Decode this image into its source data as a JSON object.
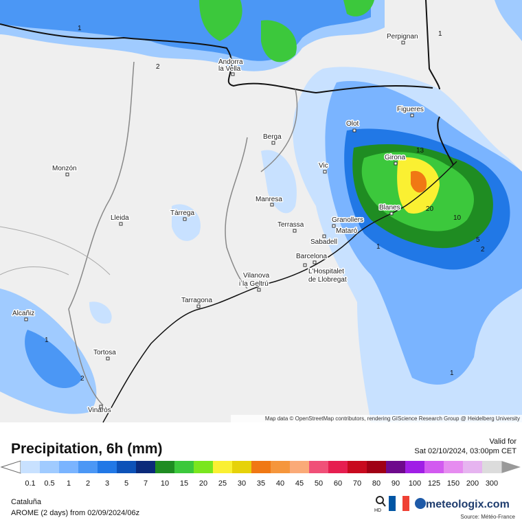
{
  "map": {
    "cities": [
      "Perpignan",
      "Andorra",
      "la Vella",
      "Figueres",
      "Olot",
      "Berga",
      "Girona",
      "Vic",
      "Monzón",
      "Manresa",
      "Blanes",
      "Tàrrega",
      "Lleida",
      "Terrassa",
      "Granollers",
      "Mataró",
      "Sabadell",
      "Barcelona",
      "L'Hospitalet",
      "de Llobregat",
      "Vilanova",
      "i la Geltrú",
      "Tarragona",
      "Alcañiz",
      "Tortosa",
      "Vinaròs"
    ],
    "contour_labels": [
      "1",
      "2",
      "13",
      "20",
      "10",
      "5",
      "2",
      "1",
      "1",
      "2",
      "1",
      "1"
    ],
    "attribution": "Map data © OpenStreetMap contributors, rendering GIScience Research Group @ Heidelberg University"
  },
  "legend": {
    "title": "Precipitation, 6h (mm)",
    "valid_label": "Valid for",
    "valid_time": "Sat 02/10/2024, 03:00pm CET",
    "steps": [
      {
        "label": "0.1",
        "color": "#c8e1ff"
      },
      {
        "label": "0.5",
        "color": "#a0cbff"
      },
      {
        "label": "1",
        "color": "#7ab4ff"
      },
      {
        "label": "2",
        "color": "#4b97f5"
      },
      {
        "label": "3",
        "color": "#2178e6"
      },
      {
        "label": "5",
        "color": "#0d52b8"
      },
      {
        "label": "7",
        "color": "#0b2a7a"
      },
      {
        "label": "10",
        "color": "#1f8c22"
      },
      {
        "label": "15",
        "color": "#3cc83c"
      },
      {
        "label": "20",
        "color": "#7ae61e"
      },
      {
        "label": "25",
        "color": "#faf032"
      },
      {
        "label": "30",
        "color": "#e6d20a"
      },
      {
        "label": "35",
        "color": "#f07814"
      },
      {
        "label": "40",
        "color": "#f5963c"
      },
      {
        "label": "45",
        "color": "#faaa78"
      },
      {
        "label": "50",
        "color": "#f05078"
      },
      {
        "label": "60",
        "color": "#e61e50"
      },
      {
        "label": "70",
        "color": "#c80a1e"
      },
      {
        "label": "80",
        "color": "#a00014"
      },
      {
        "label": "90",
        "color": "#6e0a8c"
      },
      {
        "label": "100",
        "color": "#a01ee6"
      },
      {
        "label": "125",
        "color": "#d25af0"
      },
      {
        "label": "150",
        "color": "#e68cf0"
      },
      {
        "label": "200",
        "color": "#e6b4f0"
      },
      {
        "label": "300",
        "color": "#dcdcdc"
      }
    ]
  },
  "footer": {
    "region": "Cataluña",
    "model": "AROME (2 days) from 02/09/2024/06z",
    "hd": "HD",
    "brand": "meteologix.com",
    "source": "Source: Météo-France"
  }
}
